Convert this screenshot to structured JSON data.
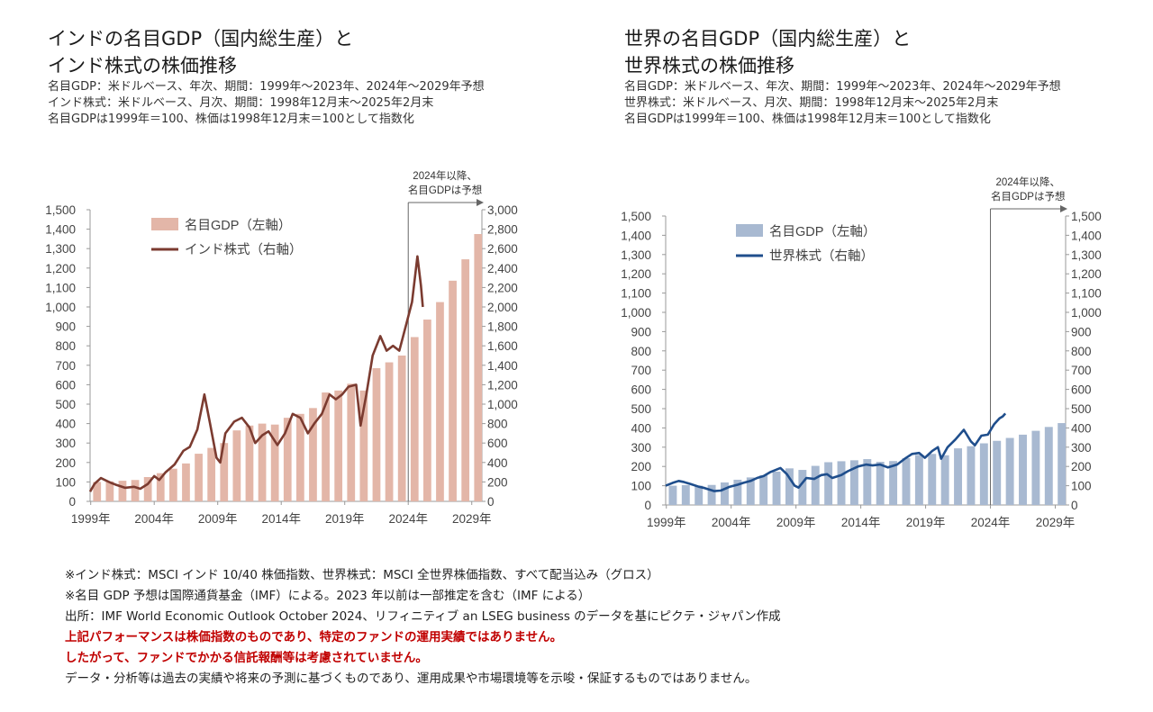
{
  "chart_data": [
    {
      "type": "bar+line",
      "title_lines": [
        "インドの名目GDP（国内総生産）と",
        "インド株式の株価推移"
      ],
      "subtitle_lines": [
        "名目GDP：米ドルベース、年次、期間：1999年～2023年、2024年～2029年予想",
        "インド株式：米ドルベース、月次、期間：1998年12月末～2025年2月末",
        "名目GDPは1999年＝100、株価は1998年12月末＝100として指数化"
      ],
      "annotation": [
        "2024年以降、",
        "名目GDPは予想"
      ],
      "left_axis": {
        "min": 0,
        "max": 1500,
        "step": 100,
        "ticks": [
          "0",
          "100",
          "200",
          "300",
          "400",
          "500",
          "600",
          "700",
          "800",
          "900",
          "1,000",
          "1,100",
          "1,200",
          "1,300",
          "1,400",
          "1,500"
        ]
      },
      "right_axis": {
        "min": 0,
        "max": 3000,
        "step": 200,
        "ticks": [
          "0",
          "200",
          "400",
          "600",
          "800",
          "1,000",
          "1,200",
          "1,400",
          "1,600",
          "1,800",
          "2,000",
          "2,200",
          "2,400",
          "2,600",
          "2,800",
          "3,000"
        ]
      },
      "x_ticks": [
        "1999年",
        "2004年",
        "2009年",
        "2014年",
        "2019年",
        "2024年",
        "2029年"
      ],
      "legend": [
        {
          "label": "名目GDP（左軸）",
          "kind": "bar",
          "color": "#e3b6a8"
        },
        {
          "label": "インド株式（右軸）",
          "kind": "line",
          "color": "#7b3b30"
        }
      ],
      "bar_series": {
        "name": "名目GDP（左軸）",
        "years": [
          1999,
          2000,
          2001,
          2002,
          2003,
          2004,
          2005,
          2006,
          2007,
          2008,
          2009,
          2010,
          2011,
          2012,
          2013,
          2014,
          2015,
          2016,
          2017,
          2018,
          2019,
          2020,
          2021,
          2022,
          2023,
          2024,
          2025,
          2026,
          2027,
          2028,
          2029
        ],
        "values": [
          100,
          103,
          106,
          110,
          125,
          145,
          168,
          195,
          245,
          275,
          300,
          365,
          390,
          400,
          395,
          430,
          450,
          480,
          560,
          570,
          605,
          570,
          685,
          715,
          750,
          845,
          935,
          1025,
          1135,
          1245,
          1375
        ]
      },
      "line_series": {
        "name": "インド株式（右軸）",
        "points": [
          [
            1998.95,
            100
          ],
          [
            1999.3,
            180
          ],
          [
            1999.8,
            240
          ],
          [
            2000.2,
            215
          ],
          [
            2000.6,
            190
          ],
          [
            2001.0,
            170
          ],
          [
            2001.7,
            140
          ],
          [
            2002.4,
            150
          ],
          [
            2002.9,
            130
          ],
          [
            2003.5,
            180
          ],
          [
            2004.0,
            260
          ],
          [
            2004.4,
            220
          ],
          [
            2004.9,
            300
          ],
          [
            2005.6,
            380
          ],
          [
            2006.3,
            520
          ],
          [
            2006.8,
            560
          ],
          [
            2007.4,
            740
          ],
          [
            2007.95,
            1100
          ],
          [
            2008.4,
            800
          ],
          [
            2008.9,
            450
          ],
          [
            2009.2,
            400
          ],
          [
            2009.6,
            700
          ],
          [
            2010.3,
            820
          ],
          [
            2010.9,
            860
          ],
          [
            2011.5,
            760
          ],
          [
            2011.95,
            600
          ],
          [
            2012.5,
            680
          ],
          [
            2013.0,
            720
          ],
          [
            2013.7,
            580
          ],
          [
            2014.3,
            700
          ],
          [
            2014.9,
            900
          ],
          [
            2015.5,
            860
          ],
          [
            2016.1,
            700
          ],
          [
            2016.6,
            800
          ],
          [
            2017.2,
            900
          ],
          [
            2017.8,
            1100
          ],
          [
            2018.3,
            1050
          ],
          [
            2018.8,
            1100
          ],
          [
            2019.3,
            1180
          ],
          [
            2019.9,
            1200
          ],
          [
            2020.25,
            780
          ],
          [
            2020.7,
            1100
          ],
          [
            2021.2,
            1500
          ],
          [
            2021.8,
            1700
          ],
          [
            2022.3,
            1550
          ],
          [
            2022.8,
            1600
          ],
          [
            2023.3,
            1550
          ],
          [
            2023.8,
            1800
          ],
          [
            2024.3,
            2050
          ],
          [
            2024.72,
            2520
          ],
          [
            2025.0,
            2220
          ],
          [
            2025.15,
            2000
          ]
        ]
      }
    },
    {
      "type": "bar+line",
      "title_lines": [
        "世界の名目GDP（国内総生産）と",
        "世界株式の株価推移"
      ],
      "subtitle_lines": [
        "名目GDP：米ドルベース、年次、期間：1999年～2023年、2024年～2029年予想",
        "世界株式：米ドルベース、月次、期間：1998年12月末～2025年2月末",
        "名目GDPは1999年＝100、株価は1998年12月末＝100として指数化"
      ],
      "annotation": [
        "2024年以降、",
        "名目GDPは予想"
      ],
      "left_axis": {
        "min": 0,
        "max": 1500,
        "step": 100,
        "ticks": [
          "0",
          "100",
          "200",
          "300",
          "400",
          "500",
          "600",
          "700",
          "800",
          "900",
          "1,000",
          "1,100",
          "1,200",
          "1,300",
          "1,400",
          "1,500"
        ]
      },
      "right_axis": {
        "min": 0,
        "max": 1500,
        "step": 100,
        "ticks": [
          "0",
          "100",
          "200",
          "300",
          "400",
          "500",
          "600",
          "700",
          "800",
          "900",
          "1,000",
          "1,100",
          "1,200",
          "1,300",
          "1,400",
          "1,500"
        ]
      },
      "x_ticks": [
        "1999年",
        "2004年",
        "2009年",
        "2014年",
        "2019年",
        "2024年",
        "2029年"
      ],
      "legend": [
        {
          "label": "名目GDP（左軸）",
          "kind": "bar",
          "color": "#a8b9d1"
        },
        {
          "label": "世界株式（右軸）",
          "kind": "line",
          "color": "#1f4e8c"
        }
      ],
      "bar_series": {
        "name": "名目GDP（左軸）",
        "years": [
          1999,
          2000,
          2001,
          2002,
          2003,
          2004,
          2005,
          2006,
          2007,
          2008,
          2009,
          2010,
          2011,
          2012,
          2013,
          2014,
          2015,
          2016,
          2017,
          2018,
          2019,
          2020,
          2021,
          2022,
          2023,
          2024,
          2025,
          2026,
          2027,
          2028,
          2029
        ],
        "values": [
          100,
          103,
          100,
          104,
          117,
          131,
          143,
          154,
          173,
          190,
          182,
          203,
          222,
          227,
          232,
          238,
          224,
          228,
          243,
          260,
          265,
          258,
          294,
          305,
          320,
          333,
          348,
          365,
          385,
          405,
          425
        ]
      },
      "line_series": {
        "name": "世界株式（右軸）",
        "points": [
          [
            1998.95,
            100
          ],
          [
            1999.5,
            115
          ],
          [
            1999.95,
            125
          ],
          [
            2000.3,
            120
          ],
          [
            2000.9,
            108
          ],
          [
            2001.5,
            95
          ],
          [
            2001.95,
            88
          ],
          [
            2002.7,
            72
          ],
          [
            2003.2,
            75
          ],
          [
            2003.9,
            95
          ],
          [
            2004.5,
            105
          ],
          [
            2004.95,
            115
          ],
          [
            2005.5,
            125
          ],
          [
            2006.0,
            140
          ],
          [
            2006.5,
            150
          ],
          [
            2007.0,
            170
          ],
          [
            2007.8,
            192
          ],
          [
            2008.3,
            160
          ],
          [
            2008.9,
            100
          ],
          [
            2009.2,
            90
          ],
          [
            2009.8,
            140
          ],
          [
            2010.4,
            135
          ],
          [
            2010.95,
            155
          ],
          [
            2011.4,
            160
          ],
          [
            2011.8,
            140
          ],
          [
            2012.5,
            155
          ],
          [
            2013.0,
            175
          ],
          [
            2013.8,
            200
          ],
          [
            2014.4,
            210
          ],
          [
            2014.9,
            205
          ],
          [
            2015.5,
            210
          ],
          [
            2016.1,
            195
          ],
          [
            2016.8,
            210
          ],
          [
            2017.4,
            240
          ],
          [
            2017.95,
            265
          ],
          [
            2018.5,
            270
          ],
          [
            2018.95,
            245
          ],
          [
            2019.5,
            280
          ],
          [
            2019.95,
            300
          ],
          [
            2020.2,
            240
          ],
          [
            2020.7,
            300
          ],
          [
            2021.3,
            340
          ],
          [
            2021.95,
            390
          ],
          [
            2022.5,
            330
          ],
          [
            2022.8,
            310
          ],
          [
            2023.3,
            360
          ],
          [
            2023.8,
            365
          ],
          [
            2024.3,
            420
          ],
          [
            2024.7,
            450
          ],
          [
            2024.95,
            460
          ],
          [
            2025.15,
            475
          ]
        ]
      }
    }
  ],
  "notes": [
    {
      "text": "※インド株式：MSCI インド 10/40 株価指数、世界株式：MSCI 全世界株価指数、すべて配当込み（グロス）",
      "color": "#222222",
      "bold": false
    },
    {
      "text": "※名目 GDP 予想は国際通貨基金（IMF）による。2023 年以前は一部推定を含む（IMF による）",
      "color": "#222222",
      "bold": false
    },
    {
      "text": "出所：IMF World Economic Outlook October 2024、リフィニティブ an LSEG business のデータを基にピクテ・ジャパン作成",
      "color": "#222222",
      "bold": false
    },
    {
      "text": "上記パフォーマンスは株価指数のものであり、特定のファンドの運用実績ではありません。",
      "color": "#c00000",
      "bold": true
    },
    {
      "text": "したがって、ファンドでかかる信託報酬等は考慮されていません。",
      "color": "#c00000",
      "bold": true
    },
    {
      "text": "データ・分析等は過去の実績や将来の予測に基づくものであり、運用成果や市場環境等を示唆・保証するものではありません。",
      "color": "#222222",
      "bold": false
    }
  ]
}
